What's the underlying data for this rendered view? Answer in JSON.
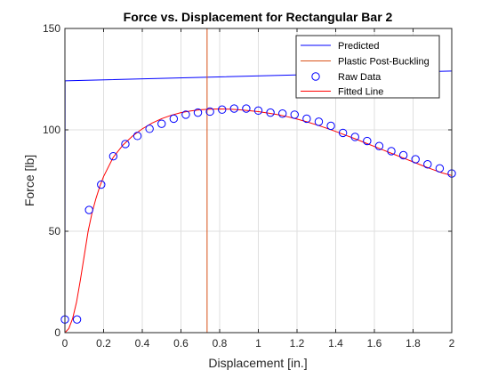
{
  "chart_data": {
    "type": "line",
    "title": "Force vs. Displacement for Rectangular Bar 2",
    "xlabel": "Displacement [in.]",
    "ylabel": "Force [lb]",
    "xlim": [
      0,
      2
    ],
    "ylim": [
      0,
      150
    ],
    "xticks": [
      0,
      0.2,
      0.4,
      0.6,
      0.8,
      1,
      1.2,
      1.4,
      1.6,
      1.8,
      2
    ],
    "xtick_labels": [
      "0",
      "0.2",
      "0.4",
      "0.6",
      "0.8",
      "1",
      "1.2",
      "1.4",
      "1.6",
      "1.8",
      "2"
    ],
    "yticks": [
      0,
      50,
      100,
      150
    ],
    "ytick_labels": [
      "0",
      "50",
      "100",
      "150"
    ],
    "grid": true,
    "legend_position": "top-right",
    "series": [
      {
        "name": "Predicted",
        "kind": "line",
        "color": "#0000ff",
        "x": [
          0,
          0.001,
          2
        ],
        "y": [
          0,
          124.2,
          129
        ]
      },
      {
        "name": "Plastic Post-Buckling",
        "kind": "vertical-line",
        "color": "#d95319",
        "x": [
          0.735,
          0.735
        ],
        "y": [
          0,
          150
        ]
      },
      {
        "name": "Raw Data",
        "kind": "scatter",
        "marker": "circle",
        "color": "#0000ff",
        "x": [
          0,
          0.0625,
          0.125,
          0.1875,
          0.25,
          0.3125,
          0.375,
          0.4375,
          0.5,
          0.5625,
          0.625,
          0.6875,
          0.75,
          0.8125,
          0.875,
          0.9375,
          1.0,
          1.0625,
          1.125,
          1.1875,
          1.25,
          1.3125,
          1.375,
          1.4375,
          1.5,
          1.5625,
          1.625,
          1.6875,
          1.75,
          1.8125,
          1.875,
          1.9375,
          2.0
        ],
        "y": [
          6.5,
          6.5,
          60.5,
          73,
          87,
          93,
          97,
          100.5,
          103,
          105.5,
          107.5,
          108.5,
          109,
          110,
          110.5,
          110.5,
          109.5,
          108.5,
          108,
          107.5,
          105.5,
          104,
          102,
          98.5,
          96.5,
          94.5,
          92,
          89.5,
          87.5,
          85.5,
          83,
          81,
          78.5
        ]
      },
      {
        "name": "Fitted Line",
        "kind": "line",
        "color": "#ff0000",
        "x": [
          0,
          0.02,
          0.04,
          0.06,
          0.08,
          0.1,
          0.12,
          0.14,
          0.16,
          0.18,
          0.2,
          0.25,
          0.3,
          0.35,
          0.4,
          0.45,
          0.5,
          0.55,
          0.6,
          0.65,
          0.7,
          0.75,
          0.8,
          0.85,
          0.9,
          0.95,
          1.0,
          1.05,
          1.1,
          1.15,
          1.2,
          1.25,
          1.3,
          1.35,
          1.4,
          1.45,
          1.5,
          1.55,
          1.6,
          1.65,
          1.7,
          1.75,
          1.8,
          1.85,
          1.9,
          1.95,
          2.0
        ],
        "y": [
          0,
          2,
          7,
          15,
          26,
          38,
          50,
          59,
          66,
          72,
          77,
          86.5,
          92.5,
          97,
          100.5,
          103.3,
          105.5,
          107.2,
          108.5,
          109.3,
          109.9,
          110.2,
          110.3,
          110.2,
          109.9,
          109.5,
          109.0,
          108.3,
          107.5,
          106.5,
          105.3,
          104.0,
          102.5,
          100.9,
          99.2,
          97.4,
          95.6,
          93.7,
          91.8,
          89.9,
          88.0,
          86.1,
          84.2,
          82.3,
          80.5,
          78.8,
          77.5
        ]
      }
    ]
  }
}
